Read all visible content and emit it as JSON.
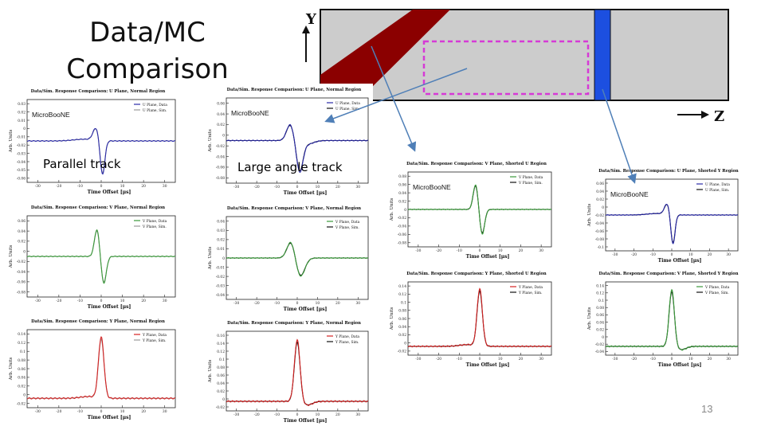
{
  "slide": {
    "title_line1": "Data/MC",
    "title_line2": "Comparison",
    "parallel_label": "Parallel track",
    "large_angle_label": "Large angle track",
    "page_number": "13",
    "colors": {
      "track": "#8b0000",
      "yplane": "#1c4fe0",
      "roi": "#d63ad6",
      "arrow": "#4f7fb7",
      "detector": "#cccccc"
    }
  },
  "schematic": {
    "y_label": "Y",
    "z_label": "Z"
  },
  "panels": [
    {
      "key": "p1",
      "title": "Data/Sim. Response Comparison:  U Plane, Normal Region",
      "logo": "MicroBooNE",
      "xlabel": "Time Offset [μs]",
      "ylabel": "Arb. Units",
      "data_color": "#2a2aa8",
      "sim_color": "#9a9a9a",
      "legend": [
        "U Plane, Data",
        "U Plane, Sim."
      ],
      "shape": "bipolar-u",
      "yticks": [
        "0.03",
        "0.02",
        "0.01",
        "0",
        "-0.01",
        "-0.02",
        "-0.03",
        "-0.04",
        "-0.05",
        "-0.06"
      ],
      "xticks": [
        "-30",
        "-20",
        "-10",
        "0",
        "10",
        "20",
        "30"
      ]
    },
    {
      "key": "p2",
      "title": "Data/Sim. Response Comparison:  U Plane, Normal Region",
      "logo": "MicroBooNE",
      "xlabel": "Time Offset [μs]",
      "ylabel": "Arb. Units",
      "data_color": "#2a2aa8",
      "sim_color": "#111111",
      "legend": [
        "U Plane, Data",
        "U Plane, Sim."
      ],
      "shape": "bipolar-u-wide",
      "yticks": [
        "0.06",
        "0.04",
        "0.02",
        "0",
        "-0.02",
        "-0.04",
        "-0.06",
        "-0.08"
      ],
      "xticks": [
        "-30",
        "-20",
        "-10",
        "0",
        "10",
        "20",
        "30"
      ]
    },
    {
      "key": "p3",
      "title": "Data/Sim. Response Comparison:  V Plane, Shorted U Region",
      "logo": "MicroBooNE",
      "xlabel": "Time Offset [μs]",
      "ylabel": "Arb. Units",
      "data_color": "#3a9a3a",
      "sim_color": "#111111",
      "legend": [
        "V Plane, Data",
        "V Plane, Sim."
      ],
      "shape": "bipolar-v",
      "yticks": [
        "0.08",
        "0.06",
        "0.04",
        "0.02",
        "0",
        "-0.02",
        "-0.04",
        "-0.06",
        "-0.08"
      ],
      "xticks": [
        "-30",
        "-20",
        "-10",
        "0",
        "10",
        "20",
        "30"
      ]
    },
    {
      "key": "p4",
      "title": "Data/Sim. Response Comparison:  U Plane, Shorted Y Region",
      "logo": "MicroBooNE",
      "xlabel": "Time Offset [μs]",
      "ylabel": "Arb. Units",
      "data_color": "#2a2aa8",
      "sim_color": "#111111",
      "legend": [
        "U Plane, Data",
        "U Plane, Sim."
      ],
      "shape": "bipolar-u",
      "yticks": [
        "0.06",
        "0.04",
        "0.02",
        "0",
        "-0.02",
        "-0.04",
        "-0.06",
        "-0.08",
        "-0.1"
      ],
      "xticks": [
        "-30",
        "-20",
        "-10",
        "0",
        "10",
        "20",
        "30"
      ]
    },
    {
      "key": "p5",
      "title": "Data/Sim. Response Comparison:  V Plane, Normal Region",
      "logo": "",
      "xlabel": "Time Offset [μs]",
      "ylabel": "Arb. Units",
      "data_color": "#3a9a3a",
      "sim_color": "#9a9a9a",
      "legend": [
        "V Plane, Data",
        "V Plane, Sim."
      ],
      "shape": "bipolar-v",
      "yticks": [
        "0.06",
        "0.04",
        "0.02",
        "0",
        "-0.02",
        "-0.04",
        "-0.06",
        "-0.08"
      ],
      "xticks": [
        "-30",
        "-20",
        "-10",
        "0",
        "10",
        "20",
        "30"
      ]
    },
    {
      "key": "p6",
      "title": "Data/Sim. Response Comparison:  V Plane, Normal Region",
      "logo": "",
      "xlabel": "Time Offset [μs]",
      "ylabel": "Arb. Units",
      "data_color": "#3a9a3a",
      "sim_color": "#111111",
      "legend": [
        "V Plane, Data",
        "V Plane, Sim."
      ],
      "shape": "bipolar-v-wide",
      "yticks": [
        "0.04",
        "0.03",
        "0.02",
        "0.01",
        "0",
        "-0.01",
        "-0.02",
        "-0.03",
        "-0.04"
      ],
      "xticks": [
        "-30",
        "-20",
        "-10",
        "0",
        "10",
        "20",
        "30"
      ]
    },
    {
      "key": "p7",
      "title": "Data/Sim. Response Comparison:  Y Plane, Shorted U Region",
      "logo": "",
      "xlabel": "Time Offset [μs]",
      "ylabel": "Arb. Units",
      "data_color": "#d42020",
      "sim_color": "#111111",
      "legend": [
        "Y Plane, Data",
        "Y Plane, Sim."
      ],
      "shape": "unipolar",
      "yticks": [
        "0.14",
        "0.12",
        "0.1",
        "0.08",
        "0.06",
        "0.04",
        "0.02",
        "0",
        "-0.02"
      ],
      "xticks": [
        "-30",
        "-20",
        "-10",
        "0",
        "10",
        "20",
        "30"
      ]
    },
    {
      "key": "p8",
      "title": "Data/Sim. Response Comparison:  V Plane, Shorted Y Region",
      "logo": "",
      "xlabel": "Time Offset [μs]",
      "ylabel": "Arb. Units",
      "data_color": "#3a9a3a",
      "sim_color": "#111111",
      "legend": [
        "V Plane, Data",
        "V Plane, Sim."
      ],
      "shape": "unipolar-neg",
      "yticks": [
        "0.14",
        "0.12",
        "0.1",
        "0.08",
        "0.06",
        "0.04",
        "0.02",
        "0",
        "-0.02",
        "-0.04"
      ],
      "xticks": [
        "-30",
        "-20",
        "-10",
        "0",
        "10",
        "20",
        "30"
      ]
    },
    {
      "key": "p9",
      "title": "Data/Sim. Response Comparison:  Y Plane, Normal Region",
      "logo": "",
      "xlabel": "Time Offset [μs]",
      "ylabel": "Arb. Units",
      "data_color": "#d42020",
      "sim_color": "#9a9a9a",
      "legend": [
        "Y Plane, Data",
        "Y Plane, Sim."
      ],
      "shape": "unipolar",
      "yticks": [
        "0.14",
        "0.12",
        "0.1",
        "0.08",
        "0.06",
        "0.04",
        "0.02",
        "0",
        "-0.02"
      ],
      "xticks": [
        "-30",
        "-20",
        "-10",
        "0",
        "10",
        "20",
        "30"
      ]
    },
    {
      "key": "p10",
      "title": "Data/Sim. Response Comparison:  Y Plane, Normal Region",
      "logo": "",
      "xlabel": "Time Offset [μs]",
      "ylabel": "Arb. Units",
      "data_color": "#d42020",
      "sim_color": "#111111",
      "legend": [
        "Y Plane, Data",
        "Y Plane, Sim."
      ],
      "shape": "unipolar-neg",
      "yticks": [
        "0.16",
        "0.14",
        "0.12",
        "0.1",
        "0.08",
        "0.06",
        "0.04",
        "0.02",
        "0",
        "-0.02"
      ],
      "xticks": [
        "-30",
        "-20",
        "-10",
        "0",
        "10",
        "20",
        "30"
      ]
    }
  ],
  "chart_data": [
    {
      "type": "line",
      "title": "Data/Sim. Response Comparison:  U Plane, Normal Region",
      "xlabel": "Time Offset [μs]",
      "ylabel": "Arb. Units",
      "xlim": [
        -35,
        35
      ],
      "ylim": [
        -0.065,
        0.035
      ],
      "x": [
        -35,
        -20,
        -10,
        -5,
        -3,
        -1,
        0,
        1,
        2,
        4,
        8,
        15,
        35
      ],
      "series": [
        {
          "name": "U Plane, Data",
          "values": [
            0,
            0,
            0.001,
            0.005,
            0.018,
            0.012,
            -0.055,
            -0.035,
            -0.012,
            -0.004,
            0,
            0,
            0
          ]
        },
        {
          "name": "U Plane, Sim.",
          "values": [
            0,
            0,
            0.001,
            0.004,
            0.016,
            0.01,
            -0.05,
            -0.032,
            -0.01,
            -0.003,
            0,
            0,
            0
          ]
        }
      ]
    },
    {
      "type": "line",
      "title": "Data/Sim. Response Comparison:  Y Plane, Normal Region",
      "xlabel": "Time Offset [μs]",
      "ylabel": "Arb. Units",
      "xlim": [
        -35,
        35
      ],
      "ylim": [
        -0.02,
        0.15
      ],
      "x": [
        -35,
        -20,
        -10,
        -5,
        -3,
        -1,
        0,
        1,
        3,
        5,
        10,
        20,
        35
      ],
      "series": [
        {
          "name": "Y Plane, Data",
          "values": [
            0,
            0,
            0,
            0.002,
            0.01,
            0.07,
            0.125,
            0.07,
            0.012,
            0.002,
            0,
            0,
            0
          ]
        },
        {
          "name": "Y Plane, Sim.",
          "values": [
            0,
            0,
            0,
            0.002,
            0.01,
            0.066,
            0.12,
            0.066,
            0.01,
            0.002,
            0,
            0,
            0
          ]
        }
      ]
    }
  ]
}
